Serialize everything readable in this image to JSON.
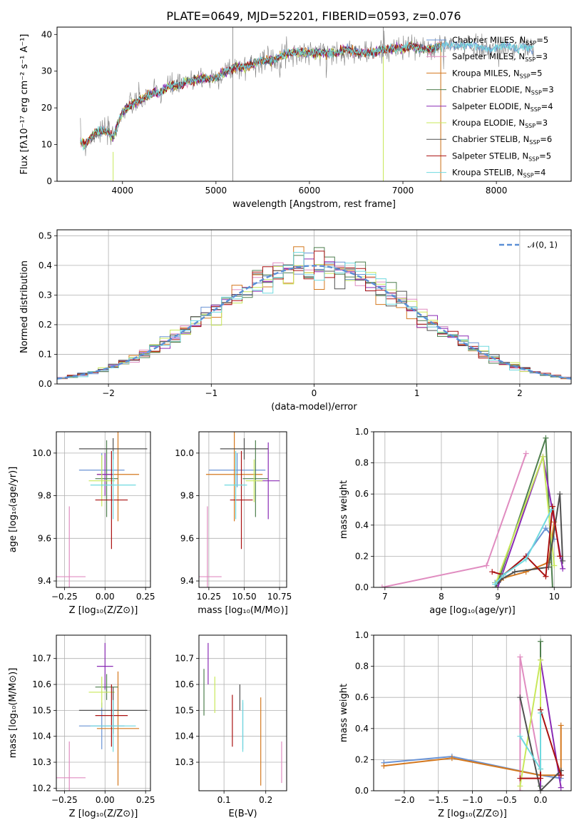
{
  "colors": [
    "#6a93d4",
    "#e08cc0",
    "#d4781e",
    "#4f7f4f",
    "#8a2bb5",
    "#c8e85a",
    "#505050",
    "#aa1111",
    "#6fd9df"
  ],
  "chart_data": [
    {
      "id": "spectrum",
      "type": "line",
      "title": "PLATE=0649, MJD=52201, FIBERID=0593, z=0.076",
      "xlabel": "wavelength [Angstrom, rest frame]",
      "ylabel": "Flux [fλ10⁻¹⁷ erg cm⁻² s⁻¹ A⁻¹]",
      "xlim": [
        3300,
        8800
      ],
      "ylim": [
        0,
        42
      ],
      "xticks": [
        4000,
        5000,
        6000,
        7000,
        8000
      ],
      "yticks": [
        0,
        10,
        20,
        30,
        40
      ],
      "grid": false,
      "legend_position": "top-right",
      "spectrum_points": {
        "x": [
          3550,
          3600,
          3700,
          3800,
          3900,
          4000,
          4100,
          4200,
          4300,
          4400,
          4500,
          4600,
          4700,
          4800,
          4900,
          5000,
          5100,
          5200,
          5300,
          5400,
          5500,
          5600,
          5700,
          5800,
          5900,
          6000,
          6100,
          6200,
          6300,
          6400,
          6500,
          6600,
          6700,
          6800,
          6900,
          7000,
          7100,
          7200,
          7300,
          7400,
          7500,
          7600,
          7700,
          7800,
          7900,
          8000,
          8100,
          8200,
          8300,
          8400
        ],
        "y": [
          11,
          10,
          13,
          14,
          12,
          19,
          21,
          22,
          24,
          24,
          26,
          26,
          27,
          28,
          28,
          28,
          30,
          31,
          31,
          32,
          33,
          33,
          34,
          35,
          35,
          35,
          35,
          35,
          35,
          36,
          35,
          35,
          35,
          36,
          36,
          36,
          37,
          36,
          36,
          37,
          37,
          37,
          37,
          37,
          36,
          36,
          37,
          36,
          37,
          36
        ]
      },
      "series": [
        {
          "name": "Chabrier MILES, N<sub>SSP</sub>=5"
        },
        {
          "name": "Salpeter MILES, N<sub>SSP</sub>=3"
        },
        {
          "name": "Kroupa MILES, N<sub>SSP</sub>=5"
        },
        {
          "name": "Chabrier ELODIE, N<sub>SSP</sub>=3"
        },
        {
          "name": "Salpeter ELODIE, N<sub>SSP</sub>=4"
        },
        {
          "name": "Kroupa ELODIE, N<sub>SSP</sub>=3"
        },
        {
          "name": "Chabrier STELIB, N<sub>SSP</sub>=6"
        },
        {
          "name": "Salpeter STELIB, N<sub>SSP</sub>=5"
        },
        {
          "name": "Kroupa STELIB, N<sub>SSP</sub>=4"
        }
      ]
    },
    {
      "id": "residuals",
      "type": "bar",
      "xlabel": "(data-model)/error",
      "ylabel": "Normed distribution",
      "xlim": [
        -2.5,
        2.5
      ],
      "ylim": [
        0,
        0.52
      ],
      "xticks": [
        -2,
        -1,
        0,
        1,
        2
      ],
      "yticks": [
        0.0,
        0.1,
        0.2,
        0.3,
        0.4,
        0.5
      ],
      "grid": true,
      "legend_position": "top-right",
      "legend": "𝒩(0, 1)",
      "bin_width": 0.1
    },
    {
      "id": "age_vs_Z",
      "type": "scatter",
      "xlabel": "Z [log₁₀(Z/Z⊙)]",
      "ylabel": "age  [log₁₀(age/yr)]",
      "xlim": [
        -0.3,
        0.28
      ],
      "ylim": [
        9.37,
        10.1
      ],
      "xticks": [
        -0.25,
        0.0,
        0.25
      ],
      "yticks": [
        9.4,
        9.6,
        9.8,
        10.0
      ],
      "grid": true,
      "points": [
        {
          "x": -0.02,
          "xerr": 0.14,
          "y": 9.92,
          "yerr": 0.08
        },
        {
          "x": -0.22,
          "xerr": 0.1,
          "y": 9.42,
          "yerr": 0.33
        },
        {
          "x": 0.08,
          "xerr": 0.13,
          "y": 9.9,
          "yerr": 0.22
        },
        {
          "x": 0.01,
          "xerr": 0.07,
          "y": 9.88,
          "yerr": 0.18
        },
        {
          "x": 0.0,
          "xerr": 0.05,
          "y": 9.9,
          "yerr": 0.1
        },
        {
          "x": -0.02,
          "xerr": 0.08,
          "y": 9.87,
          "yerr": 0.12
        },
        {
          "x": 0.05,
          "xerr": 0.21,
          "y": 10.02,
          "yerr": 0.05
        },
        {
          "x": 0.04,
          "xerr": 0.1,
          "y": 9.78,
          "yerr": 0.23
        },
        {
          "x": 0.05,
          "xerr": 0.14,
          "y": 9.85,
          "yerr": 0.16
        }
      ]
    },
    {
      "id": "age_vs_mass",
      "type": "scatter",
      "xlabel": "mass [log₁₀(M/M⊙)]",
      "ylabel": "",
      "xlim": [
        10.18,
        10.8
      ],
      "ylim": [
        9.37,
        10.1
      ],
      "xticks": [
        10.25,
        10.5,
        10.75
      ],
      "yticks": [
        9.4,
        9.6,
        9.8,
        10.0
      ],
      "grid": true,
      "points": [
        {
          "x": 10.45,
          "xerr": 0.2,
          "y": 9.92,
          "yerr": 0.08
        },
        {
          "x": 10.24,
          "xerr": 0.1,
          "y": 9.42,
          "yerr": 0.33
        },
        {
          "x": 10.43,
          "xerr": 0.2,
          "y": 9.9,
          "yerr": 0.22
        },
        {
          "x": 10.58,
          "xerr": 0.09,
          "y": 9.88,
          "yerr": 0.18
        },
        {
          "x": 10.67,
          "xerr": 0.08,
          "y": 9.87,
          "yerr": 0.18
        },
        {
          "x": 10.57,
          "xerr": 0.06,
          "y": 9.87,
          "yerr": 0.1
        },
        {
          "x": 10.5,
          "xerr": 0.17,
          "y": 10.02,
          "yerr": 0.05
        },
        {
          "x": 10.48,
          "xerr": 0.08,
          "y": 9.78,
          "yerr": 0.23
        },
        {
          "x": 10.44,
          "xerr": 0.08,
          "y": 9.85,
          "yerr": 0.16
        }
      ]
    },
    {
      "id": "weight_vs_age",
      "type": "line",
      "xlabel": "age  [log₁₀(age/yr)]",
      "ylabel": "mass weight",
      "xlim": [
        6.8,
        10.3
      ],
      "ylim": [
        0.0,
        1.0
      ],
      "xticks": [
        7,
        8,
        9,
        10
      ],
      "yticks": [
        0.0,
        0.2,
        0.4,
        0.6,
        0.8,
        1.0
      ],
      "grid": true,
      "series": [
        {
          "x": [
            8.95,
            9.1,
            9.5,
            9.85,
            10.0
          ],
          "y": [
            0.03,
            0.08,
            0.2,
            0.38,
            0.31
          ]
        },
        {
          "x": [
            6.95,
            8.8,
            9.5
          ],
          "y": [
            0.0,
            0.14,
            0.86
          ]
        },
        {
          "x": [
            8.95,
            9.1,
            9.5,
            9.9,
            10.0
          ],
          "y": [
            0.0,
            0.06,
            0.1,
            0.16,
            0.42
          ]
        },
        {
          "x": [
            9.0,
            9.85,
            9.97
          ],
          "y": [
            0.03,
            0.96,
            0.0
          ]
        },
        {
          "x": [
            9.0,
            9.8,
            10.15
          ],
          "y": [
            0.0,
            0.84,
            0.12
          ]
        },
        {
          "x": [
            8.97,
            9.8,
            10.0
          ],
          "y": [
            0.03,
            0.84,
            0.14
          ]
        },
        {
          "x": [
            8.95,
            9.05,
            9.3,
            9.9,
            10.1,
            10.15
          ],
          "y": [
            0.0,
            0.05,
            0.1,
            0.13,
            0.6,
            0.17
          ]
        },
        {
          "x": [
            8.9,
            9.1,
            9.5,
            9.85,
            9.97,
            10.1
          ],
          "y": [
            0.1,
            0.08,
            0.2,
            0.07,
            0.52,
            0.2
          ]
        },
        {
          "x": [
            8.95,
            9.1,
            9.5,
            9.95
          ],
          "y": [
            0.02,
            0.08,
            0.18,
            0.5
          ]
        }
      ]
    },
    {
      "id": "mass_vs_Z",
      "type": "scatter",
      "xlabel": "Z [log₁₀(Z/Z⊙)]",
      "ylabel": "mass [log₁₀(M/M⊙)]",
      "xlim": [
        -0.3,
        0.28
      ],
      "ylim": [
        10.19,
        10.79
      ],
      "xticks": [
        -0.25,
        0.0,
        0.25
      ],
      "yticks": [
        10.2,
        10.3,
        10.4,
        10.5,
        10.6,
        10.7
      ],
      "grid": true,
      "points": [
        {
          "x": -0.02,
          "xerr": 0.14,
          "y": 10.44,
          "yerr": 0.09
        },
        {
          "x": -0.22,
          "xerr": 0.1,
          "y": 10.24,
          "yerr": 0.14
        },
        {
          "x": 0.08,
          "xerr": 0.13,
          "y": 10.43,
          "yerr": 0.22
        },
        {
          "x": 0.01,
          "xerr": 0.07,
          "y": 10.59,
          "yerr": 0.05
        },
        {
          "x": 0.0,
          "xerr": 0.05,
          "y": 10.67,
          "yerr": 0.09
        },
        {
          "x": -0.02,
          "xerr": 0.08,
          "y": 10.57,
          "yerr": 0.06
        },
        {
          "x": 0.05,
          "xerr": 0.21,
          "y": 10.5,
          "yerr": 0.09
        },
        {
          "x": 0.04,
          "xerr": 0.1,
          "y": 10.48,
          "yerr": 0.12
        },
        {
          "x": 0.05,
          "xerr": 0.14,
          "y": 10.44,
          "yerr": 0.1
        }
      ]
    },
    {
      "id": "mass_vs_EBV",
      "type": "scatter",
      "xlabel": "E(B-V)",
      "ylabel": "",
      "xlim": [
        0.04,
        0.25
      ],
      "ylim": [
        10.19,
        10.79
      ],
      "xticks": [
        0.1,
        0.2
      ],
      "yticks": [
        10.3,
        10.4,
        10.5,
        10.6,
        10.7
      ],
      "grid": true,
      "points": [
        {
          "x": 0.145,
          "y": 10.44,
          "yerr": 0.09
        },
        {
          "x": 0.238,
          "y": 10.3,
          "yerr": 0.08
        },
        {
          "x": 0.188,
          "y": 10.38,
          "yerr": 0.17
        },
        {
          "x": 0.052,
          "y": 10.57,
          "yerr": 0.09
        },
        {
          "x": 0.062,
          "y": 10.68,
          "yerr": 0.08
        },
        {
          "x": 0.078,
          "y": 10.56,
          "yerr": 0.07
        },
        {
          "x": 0.138,
          "y": 10.55,
          "yerr": 0.05
        },
        {
          "x": 0.12,
          "y": 10.46,
          "yerr": 0.1
        },
        {
          "x": 0.145,
          "y": 10.44,
          "yerr": 0.1
        }
      ]
    },
    {
      "id": "weight_vs_Z",
      "type": "line",
      "xlabel": "Z [log₁₀(Z/Z⊙)]",
      "ylabel": "mass weight",
      "xlim": [
        -2.45,
        0.45
      ],
      "ylim": [
        0.0,
        1.0
      ],
      "xticks": [
        -2.0,
        -1.5,
        -1.0,
        -0.5,
        0.0
      ],
      "yticks": [
        0.0,
        0.2,
        0.4,
        0.6,
        0.8,
        1.0
      ],
      "grid": true,
      "series": [
        {
          "x": [
            -2.3,
            -1.3,
            0.0,
            0.3
          ],
          "y": [
            0.18,
            0.22,
            0.1,
            0.08
          ]
        },
        {
          "x": [
            -0.3,
            -0.3,
            0.0
          ],
          "y": [
            0.0,
            0.86,
            0.14
          ]
        },
        {
          "x": [
            -2.3,
            -1.3,
            0.0,
            0.3,
            0.3
          ],
          "y": [
            0.16,
            0.21,
            0.1,
            0.1,
            0.42
          ]
        },
        {
          "x": [
            0.0,
            0.0,
            0.0
          ],
          "y": [
            0.0,
            0.96,
            0.03
          ]
        },
        {
          "x": [
            0.0,
            0.0,
            0.3
          ],
          "y": [
            0.0,
            0.84,
            0.02
          ]
        },
        {
          "x": [
            -0.3,
            0.0,
            0.0
          ],
          "y": [
            0.03,
            0.84,
            0.14
          ]
        },
        {
          "x": [
            -0.3,
            0.0,
            0.3,
            0.3
          ],
          "y": [
            0.6,
            0.0,
            0.13,
            0.1
          ]
        },
        {
          "x": [
            -0.3,
            0.0,
            0.0,
            0.3
          ],
          "y": [
            0.08,
            0.08,
            0.52,
            0.1
          ]
        },
        {
          "x": [
            -0.3,
            0.0,
            0.0
          ],
          "y": [
            0.35,
            0.14,
            0.5
          ]
        }
      ]
    }
  ]
}
